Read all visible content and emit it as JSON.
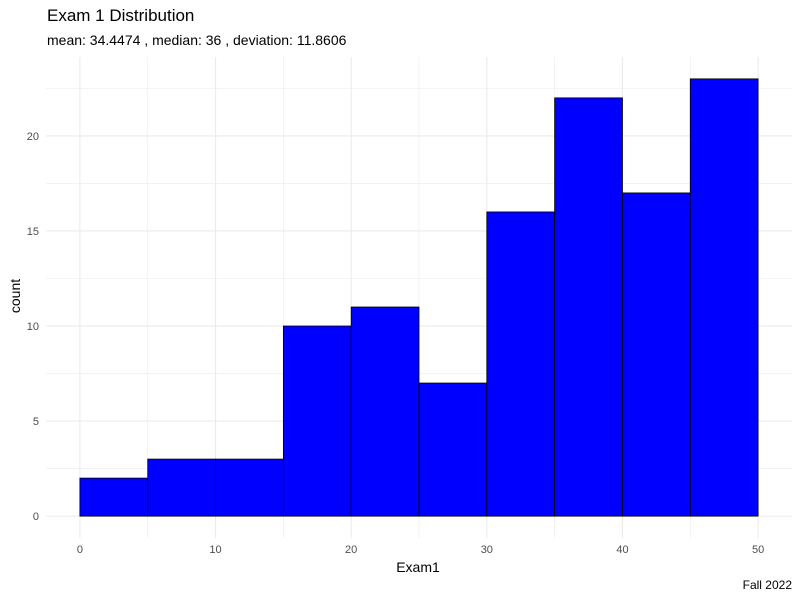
{
  "chart_data": {
    "type": "bar",
    "title": "Exam 1 Distribution",
    "subtitle": "mean: 34.4474 , median: 36 , deviation: 11.8606",
    "caption": "Fall 2022",
    "xlabel": "Exam1",
    "ylabel": "count",
    "bin_width": 5,
    "bins": [
      {
        "x0": 0,
        "x1": 5,
        "count": 2
      },
      {
        "x0": 5,
        "x1": 10,
        "count": 3
      },
      {
        "x0": 10,
        "x1": 15,
        "count": 3
      },
      {
        "x0": 15,
        "x1": 20,
        "count": 10
      },
      {
        "x0": 20,
        "x1": 25,
        "count": 11
      },
      {
        "x0": 25,
        "x1": 30,
        "count": 7
      },
      {
        "x0": 30,
        "x1": 35,
        "count": 16
      },
      {
        "x0": 35,
        "x1": 40,
        "count": 22
      },
      {
        "x0": 40,
        "x1": 45,
        "count": 17
      },
      {
        "x0": 45,
        "x1": 50,
        "count": 23
      }
    ],
    "xlim": [
      -2.5,
      52.5
    ],
    "ylim": [
      -1.15,
      24.15
    ],
    "x_ticks": [
      0,
      10,
      20,
      30,
      40,
      50
    ],
    "y_ticks": [
      0,
      5,
      10,
      15,
      20
    ],
    "bar_fill": "#0000ff",
    "bar_stroke": "#000000",
    "grid": true,
    "grid_color": "#ebebeb",
    "legend": "none"
  }
}
